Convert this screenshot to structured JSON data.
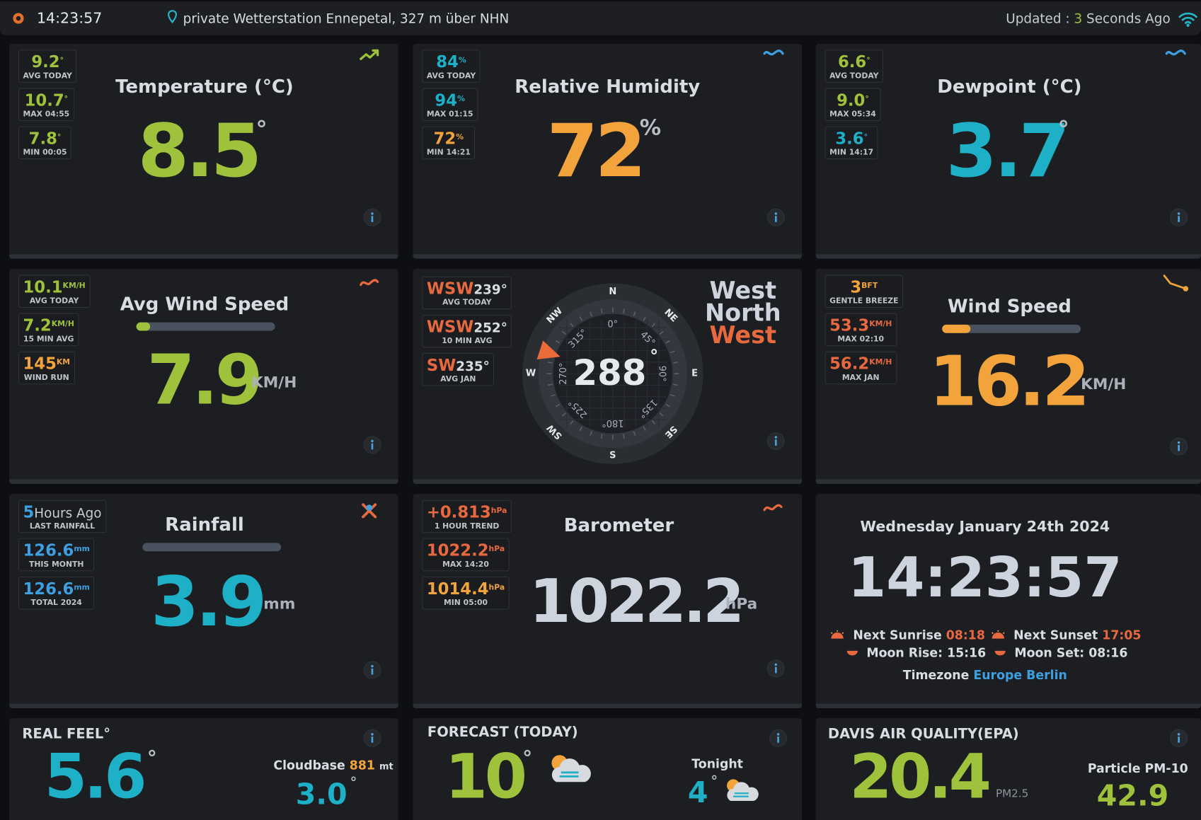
{
  "header": {
    "time": "14:23:57",
    "location": "private Wetterstation Ennepetal, 327 m über NHN",
    "updated_label": "Updated :",
    "updated_value": "3",
    "updated_unit": "Seconds Ago"
  },
  "temperature": {
    "title": "Temperature (°C)",
    "value": "8.5",
    "unit": "°",
    "stats": [
      {
        "value": "9.2",
        "unit": "°",
        "label": "AVG TODAY"
      },
      {
        "value": "10.7",
        "unit": "°",
        "label": "MAX 04:55"
      },
      {
        "value": "7.8",
        "unit": "°",
        "label": "MIN 00:05"
      }
    ]
  },
  "humidity": {
    "title": "Relative Humidity",
    "value": "72",
    "unit": "%",
    "stats": [
      {
        "value": "84",
        "unit": "%",
        "label": "AVG TODAY"
      },
      {
        "value": "94",
        "unit": "%",
        "label": "MAX 01:15"
      },
      {
        "value": "72",
        "unit": "%",
        "label": "MIN 14:21"
      }
    ]
  },
  "dewpoint": {
    "title": "Dewpoint (°C)",
    "value": "3.7",
    "unit": "°",
    "stats": [
      {
        "value": "6.6",
        "unit": "°",
        "label": "AVG TODAY"
      },
      {
        "value": "9.0",
        "unit": "°",
        "label": "MAX 05:34"
      },
      {
        "value": "3.6",
        "unit": "°",
        "label": "MIN 14:17"
      }
    ]
  },
  "avg_wind": {
    "title": "Avg Wind Speed",
    "value": "7.9",
    "unit": "KM/H",
    "stats": [
      {
        "value": "10.1",
        "unit": "KM/H",
        "label": "AVG TODAY"
      },
      {
        "value": "7.2",
        "unit": "KM/H",
        "label": "15 MIN AVG"
      },
      {
        "value": "145",
        "unit": "KM",
        "label": "WIND RUN"
      }
    ]
  },
  "direction": {
    "value": 288,
    "unit": "°",
    "name": [
      "West",
      "North",
      "West"
    ],
    "cardinals": [
      "N",
      "NE",
      "E",
      "SE",
      "S",
      "SW",
      "W",
      "NW"
    ],
    "degree_labels": [
      "0°",
      "45°",
      "90°",
      "135°",
      "180°",
      "225°",
      "270°",
      "315°"
    ],
    "stats": [
      {
        "value": "WSW",
        "unit": "239°",
        "label": "AVG TODAY"
      },
      {
        "value": "WSW",
        "unit": "252°",
        "label": "10 MIN AVG"
      },
      {
        "value": "SW",
        "unit": "235°",
        "label": "AVG JAN"
      }
    ]
  },
  "wind_speed": {
    "title": "Wind Speed",
    "value": "16.2",
    "unit": "KM/H",
    "stats": [
      {
        "value": "3",
        "unit": "BFT",
        "label": "GENTLE BREEZE"
      },
      {
        "value": "53.3",
        "unit": "KM/H",
        "label": "MAX 02:10"
      },
      {
        "value": "56.2",
        "unit": "KM/H",
        "label": "MAX JAN"
      }
    ]
  },
  "rainfall": {
    "title": "Rainfall",
    "value": "3.9",
    "unit": "mm",
    "stats": [
      {
        "value": "5",
        "unit": "Hours Ago",
        "label": "LAST RAINFALL"
      },
      {
        "value": "126.6",
        "unit": "mm",
        "label": "THIS MONTH"
      },
      {
        "value": "126.6",
        "unit": "mm",
        "label": "TOTAL 2024"
      }
    ]
  },
  "barometer": {
    "title": "Barometer",
    "value": "1022.2",
    "unit": "hPa",
    "stats": [
      {
        "value": "+0.813",
        "unit": "hPa",
        "label": "1 HOUR TREND"
      },
      {
        "value": "1022.2",
        "unit": "hPa",
        "label": "MAX 14:20"
      },
      {
        "value": "1014.4",
        "unit": "hPa",
        "label": "MIN 05:00"
      }
    ]
  },
  "clock": {
    "date": "Wednesday January 24th 2024",
    "time": "14:23:57",
    "sunrise_label": "Next Sunrise",
    "sunrise": "08:18",
    "sunset_label": "Next Sunset",
    "sunset": "17:05",
    "moonrise_label": "Moon Rise:",
    "moonrise": "15:16",
    "moonset_label": "Moon Set:",
    "moonset": "08:16",
    "timezone_label": "Timezone",
    "timezone": "Europe Berlin"
  },
  "real_feel": {
    "title": "REAL FEEL°",
    "value": "5.6",
    "unit": "°",
    "cloudbase_label": "Cloudbase",
    "cloudbase": "881",
    "cloudbase_unit": "mt",
    "cloudbase_temp": "3.0",
    "cloudbase_temp_unit": "°"
  },
  "forecast": {
    "title": "FORECAST (TODAY)",
    "value": "10",
    "unit": "°",
    "tonight_label": "Tonight",
    "tonight": "4",
    "tonight_unit": "°"
  },
  "air_quality": {
    "title": "DAVIS AIR QUALITY(EPA)",
    "value": "20.4",
    "unit": "PM2.5",
    "pm10_label": "Particle PM-10",
    "pm10": "42.9"
  }
}
